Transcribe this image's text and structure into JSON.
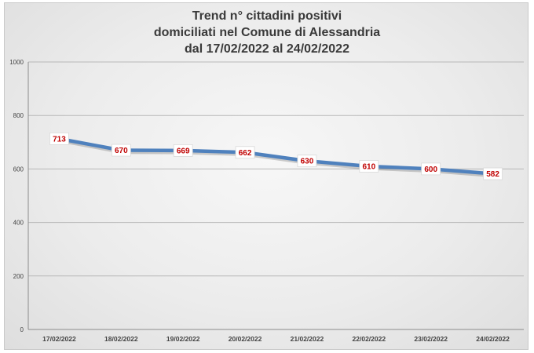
{
  "chart_data": {
    "type": "line",
    "title_lines": [
      "Trend n° cittadini positivi",
      "domiciliati nel Comune di Alessandria",
      "dal 17/02/2022 al 24/02/2022"
    ],
    "categories": [
      "17/02/2022",
      "18/02/2022",
      "19/02/2022",
      "20/02/2022",
      "21/02/2022",
      "22/02/2022",
      "23/02/2022",
      "24/02/2022"
    ],
    "values": [
      713,
      670,
      669,
      662,
      630,
      610,
      600,
      582
    ],
    "ylim": [
      0,
      1000
    ],
    "yticks": [
      0,
      200,
      400,
      600,
      800,
      1000
    ],
    "grid": true,
    "data_labels": true,
    "line_color": "#4f81bd",
    "label_color": "#c00000"
  }
}
